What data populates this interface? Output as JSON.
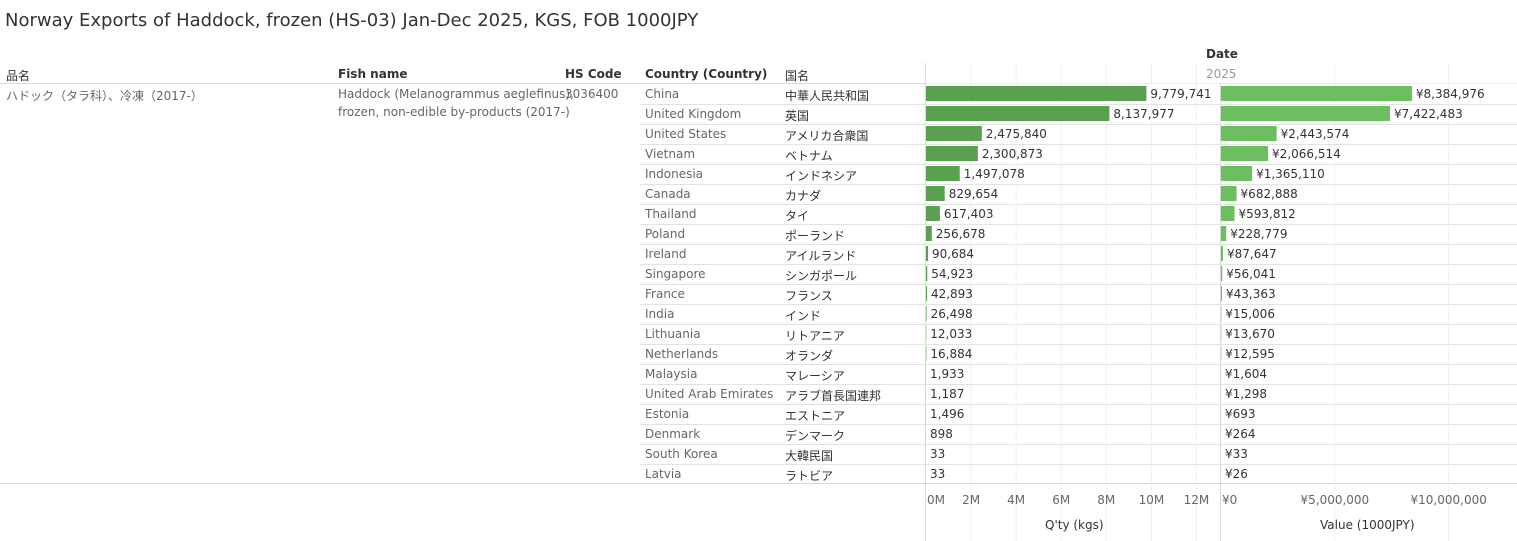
{
  "title": "Norway Exports of Haddock, frozen (HS-03) Jan-Dec 2025, KGS, FOB 1000JPY",
  "headers": {
    "hinmei": "品名",
    "fish_name": "Fish name",
    "hs_code": "HS Code",
    "country": "Country (Country)",
    "kokumei": "国名",
    "date": "Date",
    "year": "2025"
  },
  "product": {
    "hinmei": "ハドック（タラ科）、冷凍（2017-）",
    "fish_name_line1": "Haddock (Melanogrammus aeglefinus),",
    "fish_name_line2": "frozen, non-edible by-products (2017-)",
    "hs_code": "3036400"
  },
  "colors": {
    "qty_bar": "#59a14f",
    "value_bar": "#6cbf5f",
    "grid": "#d9d9d9"
  },
  "chart_data": {
    "type": "bar",
    "orientation": "horizontal",
    "categories": [
      "China",
      "United Kingdom",
      "United States",
      "Vietnam",
      "Indonesia",
      "Canada",
      "Thailand",
      "Poland",
      "Ireland",
      "Singapore",
      "France",
      "India",
      "Lithuania",
      "Netherlands",
      "Malaysia",
      "United Arab Emirates",
      "Estonia",
      "Denmark",
      "South Korea",
      "Latvia"
    ],
    "categories_jp": [
      "中華人民共和国",
      "英国",
      "アメリカ合衆国",
      "ベトナム",
      "インドネシア",
      "カナダ",
      "タイ",
      "ポーランド",
      "アイルランド",
      "シンガポール",
      "フランス",
      "インド",
      "リトアニア",
      "オランダ",
      "マレーシア",
      "アラブ首長国連邦",
      "エストニア",
      "デンマーク",
      "大韓民国",
      "ラトビア"
    ],
    "series": [
      {
        "name": "Q'ty (kgs)",
        "values": [
          9779741,
          8137977,
          2475840,
          2300873,
          1497078,
          829654,
          617403,
          256678,
          90684,
          54923,
          42893,
          26498,
          12033,
          16884,
          1933,
          1187,
          1496,
          898,
          33,
          33
        ],
        "labels": [
          "9,779,741",
          "8,137,977",
          "2,475,840",
          "2,300,873",
          "1,497,078",
          "829,654",
          "617,403",
          "256,678",
          "90,684",
          "54,923",
          "42,893",
          "26,498",
          "12,033",
          "16,884",
          "1,933",
          "1,187",
          "1,496",
          "898",
          "33",
          "33"
        ],
        "xlim": [
          0,
          13000000
        ],
        "ticks": [
          0,
          2000000,
          4000000,
          6000000,
          8000000,
          10000000,
          12000000
        ],
        "tick_labels": [
          "0M",
          "2M",
          "4M",
          "6M",
          "8M",
          "10M",
          "12M"
        ],
        "xlabel": "Q'ty (kgs)"
      },
      {
        "name": "Value (1000JPY)",
        "values": [
          8384976,
          7422483,
          2443574,
          2066514,
          1365110,
          682888,
          593812,
          228779,
          87647,
          56041,
          43363,
          15006,
          13670,
          12595,
          1604,
          1298,
          693,
          264,
          33,
          26
        ],
        "labels": [
          "¥8,384,976",
          "¥7,422,483",
          "¥2,443,574",
          "¥2,066,514",
          "¥1,365,110",
          "¥682,888",
          "¥593,812",
          "¥228,779",
          "¥87,647",
          "¥56,041",
          "¥43,363",
          "¥15,006",
          "¥13,670",
          "¥12,595",
          "¥1,604",
          "¥1,298",
          "¥693",
          "¥264",
          "¥33",
          "¥26"
        ],
        "xlim": [
          0,
          13000000
        ],
        "ticks": [
          0,
          5000000,
          10000000
        ],
        "tick_labels": [
          "¥0",
          "¥5,000,000",
          "¥10,000,000"
        ],
        "xlabel": "Value (1000JPY)"
      }
    ]
  }
}
